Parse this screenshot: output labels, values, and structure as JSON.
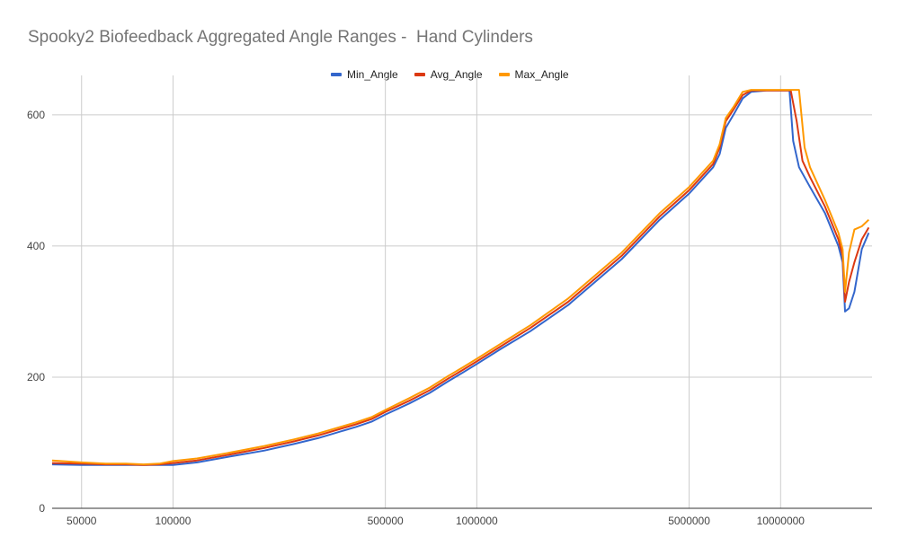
{
  "chart_data": {
    "type": "line",
    "title": "Spooky2 Biofeedback Aggregated Angle Ranges -  Hand Cylinders",
    "x_scale": "log",
    "x_ticks": [
      50000,
      100000,
      500000,
      1000000,
      5000000,
      10000000
    ],
    "x_tick_labels": [
      "50000",
      "100000",
      "500000",
      "1000000",
      "5000000",
      "10000000"
    ],
    "xlim": [
      40000,
      20000000
    ],
    "ylim": [
      0,
      660
    ],
    "y_ticks": [
      0,
      200,
      400,
      600
    ],
    "y_tick_labels": [
      "0",
      "200",
      "400",
      "600"
    ],
    "grid": true,
    "legend_position": "top",
    "series": [
      {
        "name": "Min_Angle",
        "color": "#3366cc",
        "points": [
          [
            40000,
            67
          ],
          [
            50000,
            66
          ],
          [
            60000,
            66
          ],
          [
            70000,
            66
          ],
          [
            80000,
            66
          ],
          [
            90000,
            66
          ],
          [
            100000,
            66
          ],
          [
            120000,
            70
          ],
          [
            150000,
            78
          ],
          [
            200000,
            88
          ],
          [
            250000,
            98
          ],
          [
            300000,
            107
          ],
          [
            400000,
            124
          ],
          [
            450000,
            132
          ],
          [
            500000,
            143
          ],
          [
            600000,
            160
          ],
          [
            700000,
            176
          ],
          [
            800000,
            193
          ],
          [
            900000,
            207
          ],
          [
            1000000,
            220
          ],
          [
            1200000,
            243
          ],
          [
            1500000,
            270
          ],
          [
            2000000,
            310
          ],
          [
            3000000,
            380
          ],
          [
            4000000,
            440
          ],
          [
            5000000,
            480
          ],
          [
            6000000,
            520
          ],
          [
            6300000,
            540
          ],
          [
            6600000,
            580
          ],
          [
            7000000,
            600
          ],
          [
            7500000,
            625
          ],
          [
            8000000,
            635
          ],
          [
            9000000,
            637
          ],
          [
            10000000,
            637
          ],
          [
            10700000,
            637
          ],
          [
            11000000,
            560
          ],
          [
            11500000,
            520
          ],
          [
            12500000,
            490
          ],
          [
            14000000,
            450
          ],
          [
            15500000,
            400
          ],
          [
            16000000,
            375
          ],
          [
            16300000,
            300
          ],
          [
            16800000,
            305
          ],
          [
            17500000,
            330
          ],
          [
            18500000,
            395
          ],
          [
            19500000,
            420
          ]
        ]
      },
      {
        "name": "Avg_Angle",
        "color": "#dc3912",
        "points": [
          [
            40000,
            69
          ],
          [
            50000,
            68
          ],
          [
            60000,
            67
          ],
          [
            70000,
            67
          ],
          [
            80000,
            66
          ],
          [
            90000,
            67
          ],
          [
            100000,
            69
          ],
          [
            120000,
            73
          ],
          [
            150000,
            81
          ],
          [
            200000,
            92
          ],
          [
            250000,
            102
          ],
          [
            300000,
            111
          ],
          [
            400000,
            128
          ],
          [
            450000,
            136
          ],
          [
            500000,
            147
          ],
          [
            600000,
            164
          ],
          [
            700000,
            180
          ],
          [
            800000,
            197
          ],
          [
            900000,
            211
          ],
          [
            1000000,
            224
          ],
          [
            1200000,
            247
          ],
          [
            1500000,
            275
          ],
          [
            2000000,
            315
          ],
          [
            3000000,
            385
          ],
          [
            4000000,
            445
          ],
          [
            5000000,
            485
          ],
          [
            6000000,
            525
          ],
          [
            6300000,
            550
          ],
          [
            6600000,
            590
          ],
          [
            7000000,
            608
          ],
          [
            7500000,
            630
          ],
          [
            8000000,
            637
          ],
          [
            9000000,
            637
          ],
          [
            10000000,
            637
          ],
          [
            10800000,
            637
          ],
          [
            11300000,
            590
          ],
          [
            11800000,
            530
          ],
          [
            12500000,
            505
          ],
          [
            14000000,
            460
          ],
          [
            15500000,
            410
          ],
          [
            16000000,
            385
          ],
          [
            16300000,
            315
          ],
          [
            16800000,
            345
          ],
          [
            17500000,
            375
          ],
          [
            18500000,
            410
          ],
          [
            19500000,
            428
          ]
        ]
      },
      {
        "name": "Max_Angle",
        "color": "#ff9900",
        "points": [
          [
            40000,
            73
          ],
          [
            50000,
            70
          ],
          [
            60000,
            68
          ],
          [
            70000,
            68
          ],
          [
            80000,
            67
          ],
          [
            90000,
            68
          ],
          [
            100000,
            72
          ],
          [
            120000,
            76
          ],
          [
            150000,
            84
          ],
          [
            200000,
            95
          ],
          [
            250000,
            105
          ],
          [
            300000,
            114
          ],
          [
            400000,
            131
          ],
          [
            450000,
            139
          ],
          [
            500000,
            150
          ],
          [
            600000,
            168
          ],
          [
            700000,
            184
          ],
          [
            800000,
            201
          ],
          [
            900000,
            215
          ],
          [
            1000000,
            228
          ],
          [
            1200000,
            251
          ],
          [
            1500000,
            279
          ],
          [
            2000000,
            320
          ],
          [
            3000000,
            390
          ],
          [
            4000000,
            450
          ],
          [
            5000000,
            490
          ],
          [
            6000000,
            530
          ],
          [
            6300000,
            555
          ],
          [
            6600000,
            595
          ],
          [
            7000000,
            612
          ],
          [
            7500000,
            635
          ],
          [
            8000000,
            638
          ],
          [
            9000000,
            638
          ],
          [
            10000000,
            638
          ],
          [
            11500000,
            638
          ],
          [
            12000000,
            550
          ],
          [
            12500000,
            520
          ],
          [
            14000000,
            470
          ],
          [
            15500000,
            420
          ],
          [
            16000000,
            395
          ],
          [
            16300000,
            330
          ],
          [
            16800000,
            390
          ],
          [
            17500000,
            425
          ],
          [
            18500000,
            430
          ],
          [
            19500000,
            440
          ]
        ]
      }
    ]
  }
}
